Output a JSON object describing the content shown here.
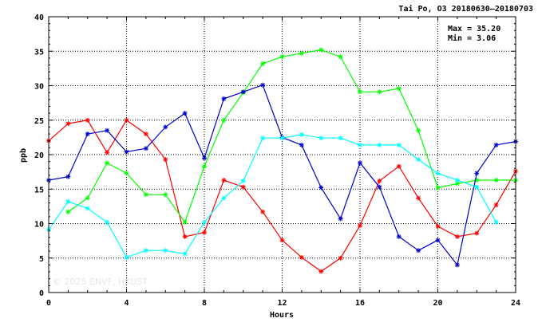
{
  "chart_data": {
    "type": "line",
    "title": "Tai Po, O3 20180630—20180703",
    "xlabel": "Hours",
    "ylabel": "ppb",
    "xlim": [
      0,
      24
    ],
    "ylim": [
      0,
      40
    ],
    "x_ticks": [
      0,
      4,
      8,
      12,
      16,
      20,
      24
    ],
    "y_ticks": [
      0,
      5,
      10,
      15,
      20,
      25,
      30,
      35,
      40
    ],
    "grid": true,
    "max_label": "Max = 35.20",
    "min_label": "Min =  3.06",
    "watermark": "© 2025  ENVF, HKUST",
    "series": [
      {
        "color": "#ff0000",
        "x": [
          0,
          1,
          2,
          3,
          4,
          5,
          6,
          7,
          8,
          9,
          10,
          11,
          12,
          13,
          14,
          15,
          16,
          17,
          18,
          19,
          20,
          21,
          22,
          23,
          24
        ],
        "values": [
          22.0,
          24.5,
          25.0,
          20.3,
          25.0,
          23.0,
          19.3,
          8.1,
          8.7,
          16.3,
          15.3,
          11.7,
          7.6,
          5.1,
          3.06,
          5.0,
          9.7,
          16.2,
          18.3,
          13.7,
          9.6,
          8.1,
          8.6,
          12.7,
          17.6
        ]
      },
      {
        "color": "#00ff00",
        "x": [
          1,
          2,
          3,
          4,
          5,
          6,
          7,
          8,
          9,
          10,
          11,
          12,
          13,
          14,
          15,
          16,
          17,
          18,
          19,
          20,
          21,
          22,
          23,
          24
        ],
        "values": [
          11.7,
          13.7,
          18.8,
          17.3,
          14.2,
          14.2,
          10.2,
          18.3,
          25.0,
          29.0,
          33.2,
          34.2,
          34.7,
          35.2,
          34.2,
          29.1,
          29.1,
          29.6,
          23.5,
          15.2,
          15.8,
          16.3,
          16.3,
          16.3
        ]
      },
      {
        "color": "#0000cc",
        "x": [
          0,
          1,
          2,
          3,
          4,
          5,
          6,
          7,
          8,
          9,
          10,
          11,
          12,
          13,
          14,
          15,
          16,
          17,
          18,
          19,
          20,
          21,
          22,
          23,
          24
        ],
        "values": [
          16.3,
          16.8,
          23.0,
          23.5,
          20.4,
          20.9,
          24.0,
          26.0,
          19.5,
          28.1,
          29.1,
          30.1,
          22.5,
          21.4,
          15.2,
          10.7,
          18.8,
          15.3,
          8.1,
          6.1,
          7.6,
          4.0,
          17.3,
          21.4,
          21.9
        ]
      },
      {
        "color": "#00ffff",
        "x": [
          0,
          1,
          2,
          3,
          4,
          5,
          6,
          7,
          8,
          9,
          10,
          11,
          12,
          13,
          14,
          15,
          16,
          17,
          18,
          19,
          20,
          21,
          22,
          23
        ],
        "values": [
          9.1,
          13.2,
          12.2,
          10.2,
          5.1,
          6.1,
          6.1,
          5.6,
          10.2,
          13.7,
          16.2,
          22.4,
          22.4,
          22.9,
          22.4,
          22.4,
          21.4,
          21.4,
          21.4,
          19.3,
          17.3,
          16.3,
          15.3,
          10.2
        ]
      }
    ]
  }
}
